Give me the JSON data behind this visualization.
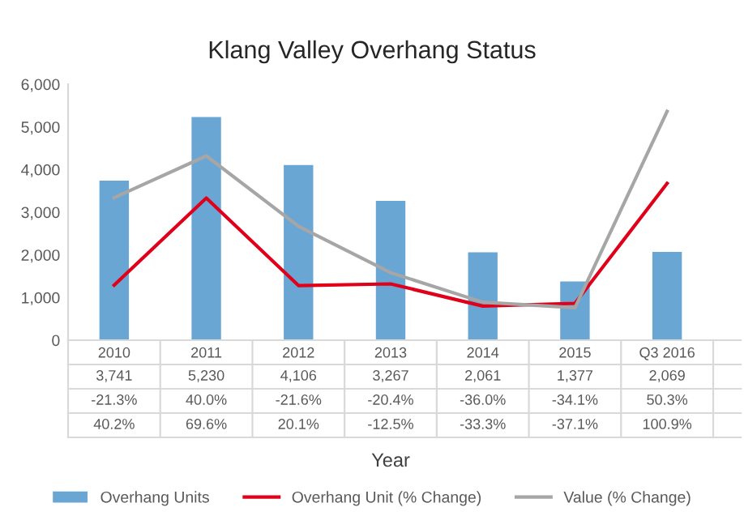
{
  "chart_data": {
    "type": "bar",
    "title": "Klang Valley Overhang Status",
    "xlabel": "Year",
    "categories": [
      "2010",
      "2011",
      "2012",
      "2013",
      "2014",
      "2015",
      "Q3 2016"
    ],
    "series": [
      {
        "name": "Overhang Units",
        "color": "#6aa6d4",
        "values": [
          3741,
          5230,
          4106,
          3267,
          2061,
          1377,
          2069
        ],
        "value_labels": [
          "3,741",
          "5,230",
          "4,106",
          "3,267",
          "2,061",
          "1,377",
          "2,069"
        ]
      },
      {
        "name": "Overhang Unit (% Change)",
        "type": "line",
        "axis": "y2",
        "color": "#e0001a",
        "values": [
          -21.3,
          40.0,
          -21.6,
          -20.4,
          -36.0,
          -34.1,
          50.3
        ],
        "value_labels": [
          "-21.3%",
          "40.0%",
          "-21.6%",
          "-20.4%",
          "-36.0%",
          "-34.1%",
          "50.3%"
        ]
      },
      {
        "name": "Value (% Change)",
        "type": "line",
        "axis": "y2",
        "color": "#a6a6a6",
        "values": [
          40.2,
          69.6,
          20.1,
          -12.5,
          -33.3,
          -37.1,
          100.9
        ],
        "value_labels": [
          "40.2%",
          "69.6%",
          "20.1%",
          "-12.5%",
          "-33.3%",
          "-37.1%",
          "100.9%"
        ]
      }
    ],
    "ylim": [
      0,
      6000
    ],
    "yticks": [
      {
        "value": 0,
        "label": "0"
      },
      {
        "value": 1000,
        "label": "1,000"
      },
      {
        "value": 2000,
        "label": "2,000"
      },
      {
        "value": 3000,
        "label": "3,000"
      },
      {
        "value": 4000,
        "label": "4,000"
      },
      {
        "value": 5000,
        "label": "5,000"
      },
      {
        "value": 6000,
        "label": "6,000"
      }
    ],
    "y2lim": [
      -60,
      120
    ],
    "grid": false,
    "legend": "bottom",
    "marker": "none",
    "line_style": "solid"
  }
}
